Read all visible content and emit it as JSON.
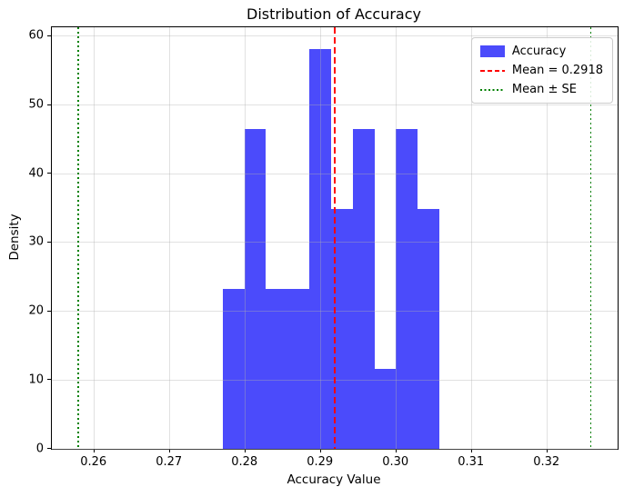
{
  "chart_data": {
    "type": "bar",
    "subtype": "histogram",
    "title": "Distribution of Accuracy",
    "xlabel": "Accuracy Value",
    "ylabel": "Density",
    "xlim": [
      0.25437,
      0.32931
    ],
    "ylim": [
      0,
      61.3
    ],
    "grid": true,
    "legend_position": "upper right",
    "bar_color": "#4b4bfb",
    "bin_edges": [
      0.277,
      0.2799,
      0.2827,
      0.2856,
      0.2885,
      0.2913,
      0.2942,
      0.2971,
      0.2999,
      0.3028,
      0.3057
    ],
    "densities": [
      23.26,
      46.51,
      23.26,
      23.26,
      58.14,
      34.88,
      46.51,
      11.63,
      46.51,
      34.88
    ],
    "x_ticks": [
      {
        "value": 0.26,
        "label": "0.26"
      },
      {
        "value": 0.27,
        "label": "0.27"
      },
      {
        "value": 0.28,
        "label": "0.28"
      },
      {
        "value": 0.29,
        "label": "0.29"
      },
      {
        "value": 0.3,
        "label": "0.30"
      },
      {
        "value": 0.31,
        "label": "0.31"
      },
      {
        "value": 0.32,
        "label": "0.32"
      }
    ],
    "y_ticks": [
      {
        "value": 0,
        "label": "0"
      },
      {
        "value": 10,
        "label": "10"
      },
      {
        "value": 20,
        "label": "20"
      },
      {
        "value": 30,
        "label": "30"
      },
      {
        "value": 40,
        "label": "40"
      },
      {
        "value": 50,
        "label": "50"
      },
      {
        "value": 60,
        "label": "60"
      }
    ],
    "lines": [
      {
        "name": "mean-line",
        "x": 0.2918,
        "style": "dashed",
        "color": "#ff0000"
      },
      {
        "name": "se-lower-line",
        "x": 0.2579,
        "style": "dotted",
        "color": "#008000"
      },
      {
        "name": "se-upper-line",
        "x": 0.3258,
        "style": "dotted",
        "color": "#008000"
      }
    ],
    "legend": [
      {
        "label": "Accuracy",
        "swatch": "patch",
        "color": "#4b4bfb",
        "name": "accuracy"
      },
      {
        "label": "Mean = 0.2918",
        "swatch": "dashed",
        "color": "#ff0000",
        "name": "mean"
      },
      {
        "label": "Mean ± SE",
        "swatch": "dotted",
        "color": "#008000",
        "name": "mean-se"
      }
    ]
  }
}
